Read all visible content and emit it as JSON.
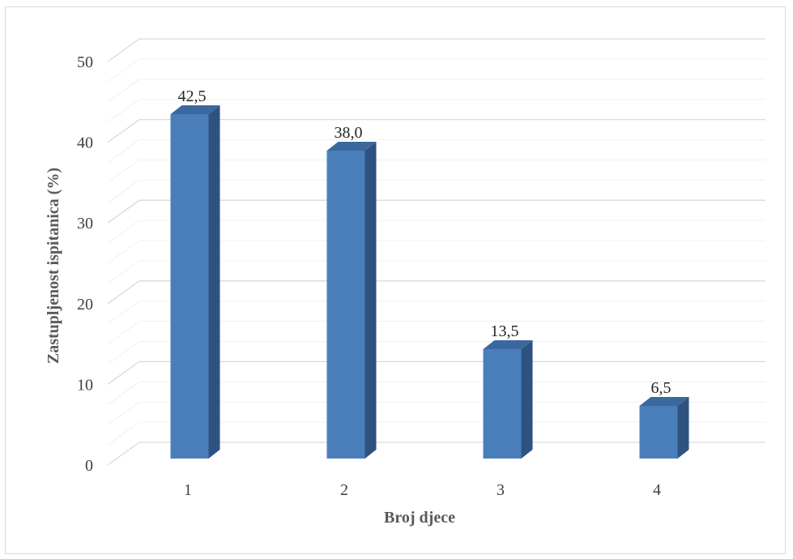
{
  "chart_data": {
    "type": "bar",
    "categories": [
      "1",
      "2",
      "3",
      "4"
    ],
    "values": [
      42.5,
      38.0,
      13.5,
      6.5
    ],
    "value_labels": [
      "42,5",
      "38,0",
      "13,5",
      "6,5"
    ],
    "xlabel": "Broj djece",
    "ylabel": "Zastupljenost ispitanica (%)",
    "ylim": [
      0,
      50
    ],
    "yticks": [
      "0",
      "10",
      "20",
      "30",
      "40",
      "50"
    ],
    "grid": true,
    "three_d": true,
    "colors": {
      "bar_front": "#4a7ebb",
      "bar_side": "#2f5380",
      "bar_top": "#3c68a0",
      "grid": "#d9d9d9",
      "grid_minor": "#f0f0f0"
    }
  }
}
